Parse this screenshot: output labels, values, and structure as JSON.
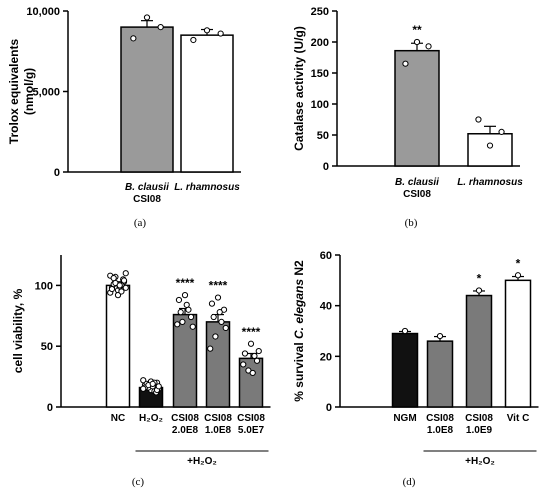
{
  "chart_data": [
    {
      "type": "bar",
      "panel_label": "(a)",
      "ylabel": "Trolox equivalents\n(nmol/g)",
      "ylim": [
        0,
        10000
      ],
      "yticks": [
        "0",
        "5,000",
        "10,000"
      ],
      "tick_values": [
        0,
        5000,
        10000
      ],
      "categories": [
        [
          "B. clausii",
          "CSI08"
        ],
        [
          "L. rhamnosus"
        ]
      ],
      "italic_words": [
        "B. clausii",
        "L. rhamnosus"
      ],
      "values": [
        9000,
        8500
      ],
      "errors": [
        400,
        350
      ],
      "fill_colors": [
        "#9a9a9a",
        "#ffffff"
      ],
      "points": [
        [
          9600,
          8300,
          9000
        ],
        [
          8800,
          8200,
          8600
        ]
      ],
      "significance": [
        "",
        ""
      ],
      "xlabel": ""
    },
    {
      "type": "bar",
      "panel_label": "(b)",
      "ylabel": "Catalase activity (U/g)",
      "ylim": [
        0,
        250
      ],
      "yticks": [
        "0",
        "50",
        "100",
        "150",
        "200",
        "250"
      ],
      "tick_values": [
        0,
        50,
        100,
        150,
        200,
        250
      ],
      "categories": [
        [
          "B. clausii",
          "CSI08"
        ],
        [
          "L. rhamnosus"
        ]
      ],
      "italic_words": [
        "B. clausii",
        "L. rhamnosus"
      ],
      "values": [
        186,
        52
      ],
      "errors": [
        12,
        12
      ],
      "fill_colors": [
        "#9a9a9a",
        "#ffffff"
      ],
      "points": [
        [
          200,
          165,
          193
        ],
        [
          33,
          75,
          55
        ]
      ],
      "significance": [
        "**",
        ""
      ],
      "xlabel": ""
    },
    {
      "type": "bar",
      "panel_label": "(c)",
      "ylabel": "cell viability, %",
      "ylim": [
        0,
        125
      ],
      "yticks": [
        "0",
        "50",
        "100"
      ],
      "tick_values": [
        0,
        50,
        100
      ],
      "categories": [
        [
          "NC"
        ],
        [
          "H₂O₂"
        ],
        [
          "CSI08",
          "2.0E8"
        ],
        [
          "CSI08",
          "1.0E8"
        ],
        [
          "CSI08",
          "5.0E7"
        ]
      ],
      "italic_words": [],
      "values": [
        100,
        16,
        76,
        70,
        40
      ],
      "errors": [
        3,
        1.5,
        5,
        6,
        4
      ],
      "fill_colors": [
        "#ffffff",
        "#111111",
        "#7a7a7a",
        "#7a7a7a",
        "#7a7a7a"
      ],
      "points": [
        [
          96,
          98,
          103,
          107,
          100,
          94,
          110,
          99,
          101,
          105,
          92,
          97,
          104,
          102,
          95,
          108,
          98,
          100,
          106
        ],
        [
          14,
          18,
          20,
          16,
          13,
          22,
          15,
          17,
          19,
          12,
          21,
          16,
          14,
          18,
          20,
          15,
          17,
          19
        ],
        [
          92,
          88,
          74,
          70,
          80,
          68,
          66,
          84,
          78
        ],
        [
          90,
          85,
          80,
          58,
          70,
          48,
          65,
          78,
          74
        ],
        [
          52,
          44,
          38,
          30,
          42,
          35,
          46,
          28
        ]
      ],
      "significance": [
        "",
        "",
        "****",
        "****",
        "****"
      ],
      "bracket": {
        "label": "+H₂O₂",
        "from": 1,
        "to": 4
      },
      "xlabel": ""
    },
    {
      "type": "bar",
      "panel_label": "(d)",
      "ylabel": "% survival C. elegans N2",
      "ylim": [
        0,
        60
      ],
      "yticks": [
        "0",
        "20",
        "40",
        "60"
      ],
      "tick_values": [
        0,
        20,
        40,
        60
      ],
      "categories": [
        [
          "NGM"
        ],
        [
          "CSI08",
          "1.0E8"
        ],
        [
          "CSI08",
          "1.0E9"
        ],
        [
          "Vit C"
        ]
      ],
      "italic_words": [
        "C. elegans"
      ],
      "values": [
        29,
        26,
        44,
        50
      ],
      "errors": [
        0.8,
        1.8,
        1.8,
        1.5
      ],
      "fill_colors": [
        "#111111",
        "#7a7a7a",
        "#7a7a7a",
        "#ffffff"
      ],
      "points": [
        [
          30
        ],
        [
          28
        ],
        [
          46
        ],
        [
          52
        ]
      ],
      "significance": [
        "",
        "",
        "*",
        "*"
      ],
      "bracket": {
        "label": "+H₂O₂",
        "from": 1,
        "to": 3
      },
      "xlabel": ""
    }
  ]
}
